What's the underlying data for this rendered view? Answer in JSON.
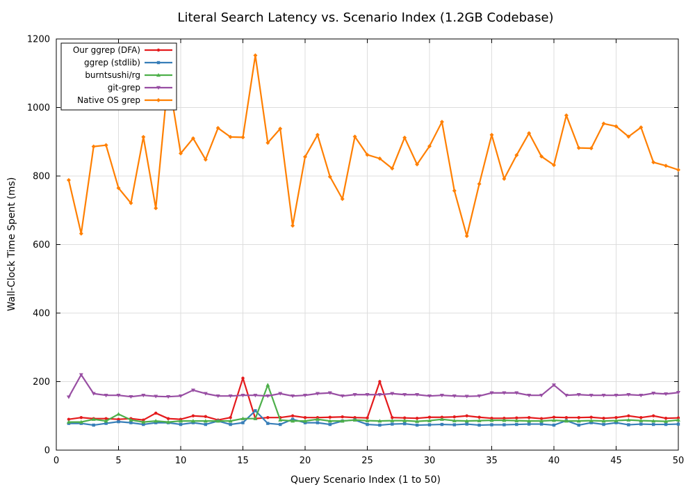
{
  "chart_data": {
    "type": "line",
    "title": "Literal Search Latency vs. Scenario Index (1.2GB Codebase)",
    "xlabel": "Query Scenario Index (1 to 50)",
    "ylabel": "Wall-Clock Time Spent (ms)",
    "xlim": [
      0,
      50
    ],
    "ylim": [
      0,
      1200
    ],
    "xticks": [
      0,
      5,
      10,
      15,
      20,
      25,
      30,
      35,
      40,
      45,
      50
    ],
    "yticks": [
      0,
      200,
      400,
      600,
      800,
      1000,
      1200
    ],
    "grid": true,
    "legend_position": "top-left",
    "x": [
      1,
      2,
      3,
      4,
      5,
      6,
      7,
      8,
      9,
      10,
      11,
      12,
      13,
      14,
      15,
      16,
      17,
      18,
      19,
      20,
      21,
      22,
      23,
      24,
      25,
      26,
      27,
      28,
      29,
      30,
      31,
      32,
      33,
      34,
      35,
      36,
      37,
      38,
      39,
      40,
      41,
      42,
      43,
      44,
      45,
      46,
      47,
      48,
      49,
      50
    ],
    "series": [
      {
        "name": "Our ggrep (DFA)",
        "color": "#e41a1c",
        "marker": "circle",
        "values": [
          90,
          95,
          92,
          92,
          90,
          92,
          88,
          108,
          92,
          90,
          100,
          98,
          88,
          95,
          210,
          92,
          95,
          95,
          100,
          95,
          95,
          96,
          97,
          95,
          94,
          200,
          95,
          94,
          93,
          96,
          96,
          97,
          100,
          96,
          93,
          93,
          94,
          95,
          92,
          96,
          95,
          95,
          96,
          93,
          95,
          100,
          95,
          100,
          93,
          94
        ]
      },
      {
        "name": "ggrep (stdlib)",
        "color": "#377eb8",
        "marker": "square",
        "values": [
          78,
          78,
          73,
          78,
          83,
          80,
          75,
          80,
          80,
          75,
          80,
          75,
          85,
          75,
          80,
          115,
          78,
          75,
          90,
          80,
          80,
          75,
          85,
          88,
          75,
          73,
          76,
          77,
          73,
          74,
          75,
          74,
          76,
          73,
          74,
          74,
          75,
          76,
          76,
          73,
          86,
          73,
          80,
          75,
          80,
          74,
          76,
          75,
          75,
          76
        ]
      },
      {
        "name": "burntsushi/rg",
        "color": "#4daf4a",
        "marker": "triangle-up",
        "values": [
          82,
          82,
          90,
          85,
          105,
          88,
          82,
          85,
          82,
          85,
          85,
          85,
          85,
          85,
          92,
          92,
          190,
          88,
          85,
          85,
          90,
          85,
          85,
          88,
          86,
          85,
          86,
          86,
          84,
          86,
          90,
          86,
          85,
          86,
          87,
          87,
          86,
          85,
          85,
          87,
          85,
          85,
          86,
          85,
          86,
          88,
          86,
          85,
          84,
          88
        ]
      },
      {
        "name": "git-grep",
        "color": "#984ea3",
        "marker": "triangle-down",
        "values": [
          155,
          220,
          165,
          160,
          160,
          156,
          160,
          157,
          156,
          158,
          175,
          165,
          158,
          158,
          160,
          160,
          158,
          165,
          158,
          160,
          165,
          167,
          158,
          162,
          162,
          162,
          165,
          162,
          162,
          158,
          160,
          158,
          157,
          158,
          167,
          167,
          167,
          160,
          160,
          190,
          160,
          162,
          160,
          160,
          160,
          162,
          160,
          166,
          164,
          168
        ]
      },
      {
        "name": "Native OS grep",
        "color": "#ff7f00",
        "marker": "diamond",
        "values": [
          788,
          632,
          886,
          890,
          765,
          721,
          914,
          706,
          1090,
          866,
          910,
          848,
          940,
          914,
          913,
          1152,
          897,
          938,
          655,
          856,
          920,
          798,
          733,
          915,
          862,
          851,
          822,
          912,
          834,
          887,
          958,
          757,
          625,
          777,
          920,
          792,
          861,
          925,
          857,
          832,
          977,
          882,
          881,
          953,
          945,
          915,
          942,
          840,
          830,
          818
        ]
      }
    ]
  }
}
